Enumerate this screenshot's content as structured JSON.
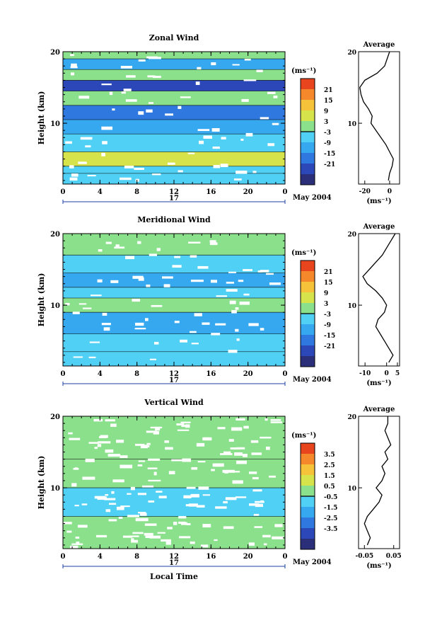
{
  "chart_data": [
    {
      "type": "heatmap",
      "title": "Zonal Wind",
      "ylabel": "Height (km)",
      "xlabel": "",
      "x_ticks": [
        "0",
        "4",
        "8",
        "12",
        "16",
        "20",
        "0"
      ],
      "y_ticks": [
        "10",
        "20"
      ],
      "xlim": [
        0,
        24
      ],
      "ylim": [
        1.5,
        20
      ],
      "date_label": "May 2004",
      "day_label": "17",
      "colorbar": {
        "unit_label": "(ms⁻¹)",
        "ticks": [
          "21",
          "15",
          "9",
          "3",
          "-3",
          "-9",
          "-15",
          "-21"
        ],
        "colors": [
          "#2b2f7a",
          "#2c48b8",
          "#2f78e0",
          "#36a8f0",
          "#4fd0f4",
          "#8be08c",
          "#d6e34a",
          "#f6c23a",
          "#f5882a",
          "#e8451f"
        ]
      },
      "bands": [
        {
          "y0": 19.0,
          "y1": 20.0,
          "value": 3
        },
        {
          "y0": 17.5,
          "y1": 19.0,
          "value": -8
        },
        {
          "y0": 16.0,
          "y1": 17.5,
          "value": 3
        },
        {
          "y0": 14.5,
          "y1": 16.0,
          "value": -21
        },
        {
          "y0": 12.5,
          "y1": 14.5,
          "value": 2
        },
        {
          "y0": 10.5,
          "y1": 12.5,
          "value": -12
        },
        {
          "y0": 8.5,
          "y1": 10.5,
          "value": -6
        },
        {
          "y0": 6.0,
          "y1": 8.5,
          "value": -3
        },
        {
          "y0": 4.0,
          "y1": 6.0,
          "value": 6
        },
        {
          "y0": 3.0,
          "y1": 4.0,
          "value": -3
        },
        {
          "y0": 1.5,
          "y1": 3.0,
          "value": -5
        }
      ],
      "average_profile": {
        "title": "Average",
        "unit_label": "(ms⁻¹)",
        "x_ticks": [
          "-20",
          "0"
        ],
        "xlim": [
          -25,
          8
        ],
        "heights": [
          2,
          3,
          4,
          5,
          6,
          7,
          8,
          9,
          10,
          11,
          12,
          13,
          14,
          15,
          16,
          17,
          18,
          19,
          20
        ],
        "values": [
          -1,
          0,
          2,
          3,
          0,
          -3,
          -7,
          -11,
          -15,
          -14,
          -17,
          -21,
          -23,
          -24,
          -20,
          -10,
          -4,
          -2,
          0
        ]
      }
    },
    {
      "type": "heatmap",
      "title": "Meridional Wind",
      "ylabel": "Height (km)",
      "xlabel": "",
      "x_ticks": [
        "0",
        "4",
        "8",
        "12",
        "16",
        "20",
        "0"
      ],
      "y_ticks": [
        "10",
        "20"
      ],
      "xlim": [
        0,
        24
      ],
      "ylim": [
        1.5,
        20
      ],
      "date_label": "May 2004",
      "day_label": "17",
      "colorbar": {
        "unit_label": "(ms⁻¹)",
        "ticks": [
          "21",
          "15",
          "9",
          "3",
          "-3",
          "-9",
          "-15",
          "-21"
        ],
        "colors": [
          "#2b2f7a",
          "#2c48b8",
          "#2f78e0",
          "#36a8f0",
          "#4fd0f4",
          "#8be08c",
          "#d6e34a",
          "#f6c23a",
          "#f5882a",
          "#e8451f"
        ]
      },
      "bands": [
        {
          "y0": 17.0,
          "y1": 20.0,
          "value": 0
        },
        {
          "y0": 14.5,
          "y1": 17.0,
          "value": -5
        },
        {
          "y0": 12.5,
          "y1": 14.5,
          "value": -10
        },
        {
          "y0": 11.0,
          "y1": 12.5,
          "value": -3
        },
        {
          "y0": 9.0,
          "y1": 11.0,
          "value": 4
        },
        {
          "y0": 6.0,
          "y1": 9.0,
          "value": -9
        },
        {
          "y0": 3.5,
          "y1": 6.0,
          "value": -4
        },
        {
          "y0": 1.5,
          "y1": 3.5,
          "value": -3
        }
      ],
      "average_profile": {
        "title": "Average",
        "unit_label": "(ms⁻¹)",
        "x_ticks": [
          "-10",
          "0",
          "5"
        ],
        "xlim": [
          -13,
          6
        ],
        "heights": [
          2,
          3,
          4,
          5,
          6,
          7,
          8,
          9,
          10,
          11,
          12,
          13,
          14,
          15,
          16,
          17,
          18,
          19,
          20
        ],
        "values": [
          1,
          3,
          1,
          -1,
          -3,
          -5,
          -4,
          -1,
          0,
          -2,
          -5,
          -9,
          -11,
          -8,
          -5,
          -2,
          0,
          2,
          4
        ]
      }
    },
    {
      "type": "heatmap",
      "title": "Vertical Wind",
      "ylabel": "Height (km)",
      "xlabel": "Local Time",
      "x_ticks": [
        "0",
        "4",
        "8",
        "12",
        "16",
        "20",
        "0"
      ],
      "y_ticks": [
        "10",
        "20"
      ],
      "xlim": [
        0,
        24
      ],
      "ylim": [
        1.5,
        20
      ],
      "date_label": "May 2004",
      "day_label": "17",
      "colorbar": {
        "unit_label": "(ms⁻¹)",
        "ticks": [
          "3.5",
          "2.5",
          "1.5",
          "0.5",
          "-0.5",
          "-1.5",
          "-2.5",
          "-3.5"
        ],
        "colors": [
          "#2b2f7a",
          "#2c48b8",
          "#2f78e0",
          "#36a8f0",
          "#4fd0f4",
          "#8be08c",
          "#d6e34a",
          "#f6c23a",
          "#f5882a",
          "#e8451f"
        ]
      },
      "bands": [
        {
          "y0": 14.0,
          "y1": 20.0,
          "value": 0.4
        },
        {
          "y0": 10.0,
          "y1": 14.0,
          "value": 0.2
        },
        {
          "y0": 6.0,
          "y1": 10.0,
          "value": -0.3
        },
        {
          "y0": 1.5,
          "y1": 6.0,
          "value": 0.1
        }
      ],
      "average_profile": {
        "title": "Average",
        "unit_label": "(ms⁻¹)",
        "x_ticks": [
          "-0.05",
          "0.05"
        ],
        "xlim": [
          -0.07,
          0.07
        ],
        "heights": [
          2,
          3,
          4,
          5,
          6,
          7,
          8,
          9,
          10,
          11,
          12,
          13,
          14,
          15,
          16,
          17,
          18,
          19,
          20
        ],
        "values": [
          -0.04,
          -0.03,
          -0.04,
          -0.05,
          -0.04,
          -0.02,
          0,
          0.01,
          -0.01,
          0.01,
          0.02,
          0.01,
          0.03,
          0.02,
          0.04,
          0.03,
          0.02,
          0.03,
          0.03
        ]
      }
    }
  ]
}
